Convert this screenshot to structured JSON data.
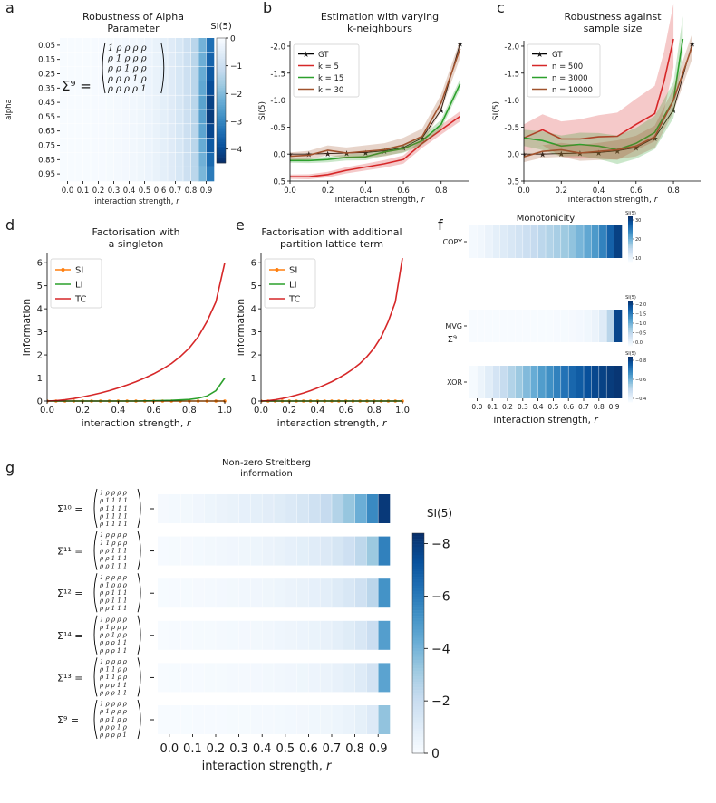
{
  "colors": {
    "gt": "#000000",
    "red": "#d62728",
    "green": "#2ca02c",
    "brown": "#a0522d",
    "si": "#ff7f0e",
    "li": "#2ca02c",
    "tc": "#d62728",
    "cmap_low": "#f7fbff",
    "cmap_high": "#08306b"
  },
  "chart_data": [
    {
      "id": "a",
      "panel_letter": "a",
      "type": "heatmap",
      "title": "Robustness of Alpha\nParameter",
      "xlabel": "interaction strength, r",
      "ylabel": "alpha",
      "x_ticks": [
        "0.0",
        "0.1",
        "0.2",
        "0.3",
        "0.4",
        "0.5",
        "0.6",
        "0.7",
        "0.8",
        "0.9"
      ],
      "y_ticks": [
        "0.05",
        "0.15",
        "0.25",
        "0.35",
        "0.45",
        "0.55",
        "0.65",
        "0.75",
        "0.85",
        "0.95"
      ],
      "colorbar": {
        "label": "SI(5)",
        "ticks": [
          "0",
          "−1",
          "−2",
          "−3",
          "−4"
        ],
        "min": -4.5,
        "max": 0
      },
      "annotation": {
        "lhs": "Σ⁹ =",
        "rows": [
          "1 ρ ρ ρ ρ",
          "ρ 1 ρ ρ ρ",
          "ρ ρ 1 ρ ρ",
          "ρ ρ ρ 1 ρ",
          "ρ ρ ρ ρ 1"
        ]
      },
      "cols": 20,
      "values_by_col": [
        0,
        0,
        0,
        0,
        -0.02,
        -0.03,
        -0.05,
        -0.07,
        -0.1,
        -0.13,
        -0.18,
        -0.24,
        -0.32,
        -0.42,
        -0.55,
        -0.72,
        -0.95,
        -1.3,
        -2.0,
        -3.0
      ],
      "row_extra_last_col": [
        0.4,
        0.6,
        0.8,
        1.0,
        1.2,
        1.3,
        1.1,
        0.8,
        0.5,
        0.2
      ]
    },
    {
      "id": "b",
      "panel_letter": "b",
      "type": "line",
      "title": "Estimation with varying\nk-neighbours",
      "xlabel": "interaction strength, r",
      "ylabel": "SI(5)",
      "xlim": [
        0,
        0.95
      ],
      "ylim": [
        0.5,
        -2.1
      ],
      "inverted_y": true,
      "x_ticks": [
        "0.0",
        "0.2",
        "0.4",
        "0.6",
        "0.8"
      ],
      "y_ticks": [
        "-2.0",
        "-1.5",
        "-1.0",
        "-0.5",
        "0.0",
        "0.5"
      ],
      "legend": "upper-left",
      "series": [
        {
          "name": "GT",
          "color_key": "gt",
          "marker": true,
          "x": [
            0,
            0.1,
            0.2,
            0.3,
            0.4,
            0.5,
            0.6,
            0.7,
            0.8,
            0.9
          ],
          "y": [
            0,
            0,
            -0.01,
            -0.02,
            -0.03,
            -0.06,
            -0.12,
            -0.3,
            -0.82,
            -2.05
          ]
        },
        {
          "name": "k = 5",
          "color_key": "red",
          "x": [
            0,
            0.1,
            0.2,
            0.3,
            0.4,
            0.5,
            0.6,
            0.7,
            0.8,
            0.9
          ],
          "y": [
            0.42,
            0.42,
            0.38,
            0.3,
            0.24,
            0.18,
            0.1,
            -0.2,
            -0.45,
            -0.7
          ],
          "band": 0.04
        },
        {
          "name": "k = 15",
          "color_key": "green",
          "x": [
            0,
            0.1,
            0.2,
            0.3,
            0.4,
            0.5,
            0.6,
            0.7,
            0.8,
            0.9
          ],
          "y": [
            0.12,
            0.12,
            0.1,
            0.06,
            0.05,
            -0.04,
            -0.1,
            -0.25,
            -0.55,
            -1.3
          ],
          "band": 0.04
        },
        {
          "name": "k = 30",
          "color_key": "brown",
          "x": [
            0,
            0.1,
            0.2,
            0.3,
            0.4,
            0.5,
            0.6,
            0.7,
            0.8,
            0.9
          ],
          "y": [
            0.04,
            0.02,
            -0.07,
            -0.02,
            -0.05,
            -0.08,
            -0.17,
            -0.33,
            -0.95,
            -1.95
          ],
          "band": 0.07
        }
      ]
    },
    {
      "id": "c",
      "panel_letter": "c",
      "type": "line",
      "title": "Robustness against\nsample size",
      "xlabel": "interaction strength, r",
      "ylabel": "SI(5)",
      "xlim": [
        0,
        0.95
      ],
      "ylim": [
        0.5,
        -2.1
      ],
      "inverted_y": true,
      "x_ticks": [
        "0.0",
        "0.2",
        "0.4",
        "0.6",
        "0.8"
      ],
      "y_ticks": [
        "-2.0",
        "-1.5",
        "-1.0",
        "-0.5",
        "0.0",
        "0.5"
      ],
      "legend": "upper-left",
      "series": [
        {
          "name": "GT",
          "color_key": "gt",
          "marker": true,
          "x": [
            0,
            0.1,
            0.2,
            0.3,
            0.4,
            0.5,
            0.6,
            0.7,
            0.8,
            0.9
          ],
          "y": [
            0,
            0,
            -0.01,
            -0.02,
            -0.03,
            -0.06,
            -0.12,
            -0.3,
            -0.82,
            -2.05
          ]
        },
        {
          "name": "n = 500",
          "color_key": "red",
          "x": [
            0,
            0.1,
            0.2,
            0.3,
            0.4,
            0.5,
            0.6,
            0.7,
            0.75,
            0.8
          ],
          "y": [
            -0.3,
            -0.45,
            -0.28,
            -0.28,
            -0.32,
            -0.33,
            -0.55,
            -0.75,
            -1.35,
            -2.2
          ],
          "band": 0.25
        },
        {
          "name": "n = 3000",
          "color_key": "green",
          "x": [
            0,
            0.1,
            0.2,
            0.3,
            0.4,
            0.5,
            0.6,
            0.7,
            0.8,
            0.85
          ],
          "y": [
            -0.3,
            -0.25,
            -0.15,
            -0.18,
            -0.15,
            -0.08,
            -0.2,
            -0.4,
            -1.0,
            -2.2
          ],
          "band": 0.15
        },
        {
          "name": "n = 10000",
          "color_key": "brown",
          "x": [
            0,
            0.1,
            0.2,
            0.3,
            0.4,
            0.5,
            0.6,
            0.7,
            0.8,
            0.9
          ],
          "y": [
            0.05,
            -0.05,
            -0.08,
            -0.02,
            -0.05,
            -0.08,
            -0.15,
            -0.32,
            -1.0,
            -2.0
          ],
          "band": 0.1
        }
      ]
    },
    {
      "id": "d",
      "panel_letter": "d",
      "type": "line",
      "title": "Factorisation with\na singleton",
      "xlabel": "interaction strength, r",
      "ylabel": "information",
      "xlim": [
        0,
        1.0
      ],
      "ylim": [
        0,
        6.4
      ],
      "x_ticks": [
        "0.0",
        "0.2",
        "0.4",
        "0.6",
        "0.8",
        "1.0"
      ],
      "y_ticks": [
        "0",
        "1",
        "2",
        "3",
        "4",
        "5",
        "6"
      ],
      "legend": "upper-left",
      "series": [
        {
          "name": "SI",
          "color_key": "si",
          "marker": true,
          "x": [
            0,
            0.05,
            0.1,
            0.15,
            0.2,
            0.25,
            0.3,
            0.35,
            0.4,
            0.45,
            0.5,
            0.55,
            0.6,
            0.65,
            0.7,
            0.75,
            0.8,
            0.85,
            0.9,
            0.95,
            1.0
          ],
          "y": [
            0,
            0,
            0,
            0,
            0,
            0,
            0,
            0,
            0,
            0,
            0,
            0,
            0,
            0,
            0,
            0,
            0,
            0,
            0,
            0,
            0
          ]
        },
        {
          "name": "LI",
          "color_key": "li",
          "x": [
            0,
            0.1,
            0.2,
            0.3,
            0.4,
            0.5,
            0.6,
            0.7,
            0.8,
            0.85,
            0.9,
            0.95,
            1.0
          ],
          "y": [
            0,
            0,
            0,
            0,
            0,
            0,
            0.01,
            0.03,
            0.07,
            0.12,
            0.22,
            0.45,
            1.0
          ]
        },
        {
          "name": "TC",
          "color_key": "tc",
          "x": [
            0,
            0.05,
            0.1,
            0.15,
            0.2,
            0.25,
            0.3,
            0.35,
            0.4,
            0.45,
            0.5,
            0.55,
            0.6,
            0.65,
            0.7,
            0.75,
            0.8,
            0.85,
            0.9,
            0.95,
            1.0
          ],
          "y": [
            0,
            0.02,
            0.06,
            0.11,
            0.18,
            0.26,
            0.35,
            0.45,
            0.57,
            0.7,
            0.84,
            1.0,
            1.18,
            1.39,
            1.63,
            1.93,
            2.3,
            2.78,
            3.45,
            4.3,
            6.0
          ]
        }
      ]
    },
    {
      "id": "e",
      "panel_letter": "e",
      "type": "line",
      "title": "Factorisation with additional\npartition lattice term",
      "xlabel": "interaction strength, r",
      "ylabel": "information",
      "xlim": [
        0,
        1.0
      ],
      "ylim": [
        0,
        6.4
      ],
      "x_ticks": [
        "0.0",
        "0.2",
        "0.4",
        "0.6",
        "0.8",
        "1.0"
      ],
      "y_ticks": [
        "0",
        "1",
        "2",
        "3",
        "4",
        "5",
        "6"
      ],
      "legend": "upper-left",
      "series": [
        {
          "name": "SI",
          "color_key": "si",
          "marker": true,
          "x": [
            0,
            0.05,
            0.1,
            0.15,
            0.2,
            0.25,
            0.3,
            0.35,
            0.4,
            0.45,
            0.5,
            0.55,
            0.6,
            0.65,
            0.7,
            0.75,
            0.8,
            0.85,
            0.9,
            0.95,
            1.0
          ],
          "y": [
            0,
            0,
            0,
            0,
            0,
            0,
            0,
            0,
            0,
            0,
            0,
            0,
            0,
            0,
            0,
            0,
            0,
            0,
            0,
            0,
            0
          ]
        },
        {
          "name": "LI",
          "color_key": "li",
          "x": [
            0,
            0.2,
            0.4,
            0.6,
            0.8,
            1.0
          ],
          "y": [
            0,
            0,
            0,
            0,
            0,
            0
          ]
        },
        {
          "name": "TC",
          "color_key": "tc",
          "x": [
            0,
            0.05,
            0.1,
            0.15,
            0.2,
            0.25,
            0.3,
            0.35,
            0.4,
            0.45,
            0.5,
            0.55,
            0.6,
            0.65,
            0.7,
            0.75,
            0.8,
            0.85,
            0.9,
            0.95,
            1.0
          ],
          "y": [
            0,
            0.02,
            0.06,
            0.11,
            0.18,
            0.26,
            0.35,
            0.45,
            0.57,
            0.7,
            0.84,
            1.0,
            1.18,
            1.39,
            1.63,
            1.93,
            2.3,
            2.78,
            3.45,
            4.3,
            6.2
          ]
        }
      ]
    },
    {
      "id": "f",
      "panel_letter": "f",
      "type": "heatmap",
      "title": "Monotonicity",
      "xlabel": "interaction strength, r",
      "x_ticks": [
        "0.0",
        "0.1",
        "0.2",
        "0.3",
        "0.4",
        "0.5",
        "0.6",
        "0.7",
        "0.8",
        "0.9"
      ],
      "rows": [
        {
          "label": "COPY",
          "sublabel": "",
          "values": [
            0.5,
            1,
            2,
            3,
            4,
            5,
            6,
            7,
            8,
            9,
            10,
            11,
            12,
            13,
            15,
            17,
            19,
            22,
            26,
            30
          ],
          "cb_label": "SI(5)",
          "cb_ticks": [
            "30",
            "20",
            "10"
          ],
          "cb_min": 0,
          "cb_max": 32
        },
        {
          "label": "MVG",
          "sublabel": "Σ⁹",
          "values": [
            0,
            0,
            0,
            0,
            0,
            0,
            0,
            0,
            0,
            0,
            0,
            0.01,
            0.02,
            0.03,
            0.05,
            0.08,
            0.15,
            0.3,
            0.7,
            2.2
          ],
          "cb_label": "SI(5)",
          "cb_ticks": [
            "−2.0",
            "−1.5",
            "−1.0",
            "−0.5",
            "0.0"
          ],
          "cb_min": 0,
          "cb_max": 2.4
        },
        {
          "label": "XOR",
          "sublabel": "",
          "values": [
            0.01,
            0.05,
            0.1,
            0.16,
            0.22,
            0.28,
            0.34,
            0.4,
            0.46,
            0.52,
            0.57,
            0.62,
            0.67,
            0.71,
            0.75,
            0.79,
            0.82,
            0.84,
            0.86,
            0.88
          ],
          "cb_label": "SI(5)",
          "cb_ticks": [
            "−0.8",
            "−0.6",
            "−0.4"
          ],
          "cb_min": 0,
          "cb_max": 0.9
        }
      ]
    },
    {
      "id": "g",
      "panel_letter": "g",
      "type": "heatmap",
      "title": "Non-zero Streitberg\ninformation",
      "xlabel": "interaction strength, r",
      "x_ticks": [
        "0.0",
        "0.1",
        "0.2",
        "0.3",
        "0.4",
        "0.5",
        "0.6",
        "0.7",
        "0.8",
        "0.9"
      ],
      "colorbar": {
        "label": "SI(5)",
        "ticks": [
          "−8",
          "−6",
          "−4",
          "−2",
          "0"
        ],
        "min": 0,
        "max": 8.4
      },
      "rows": [
        {
          "label": "Σ¹⁰ =",
          "matrix": [
            "1 ρ ρ ρ ρ",
            "ρ 1 1 1 1",
            "ρ 1 1 1 1",
            "ρ 1 1 1 1",
            "ρ 1 1 1 1"
          ],
          "values": [
            0.1,
            0.15,
            0.2,
            0.3,
            0.4,
            0.5,
            0.6,
            0.7,
            0.8,
            0.9,
            1.0,
            1.2,
            1.4,
            1.7,
            2.1,
            2.6,
            3.3,
            4.2,
            5.5,
            8.1
          ]
        },
        {
          "label": "Σ¹¹ =",
          "matrix": [
            "1 ρ ρ ρ ρ",
            "1 1 ρ ρ ρ",
            "ρ ρ 1 1 1",
            "ρ ρ 1 1 1",
            "ρ ρ 1 1 1"
          ],
          "values": [
            0.05,
            0.08,
            0.1,
            0.15,
            0.2,
            0.25,
            0.3,
            0.35,
            0.42,
            0.5,
            0.6,
            0.7,
            0.82,
            0.97,
            1.15,
            1.4,
            1.75,
            2.3,
            3.2,
            5.8
          ]
        },
        {
          "label": "Σ¹² =",
          "matrix": [
            "1 ρ ρ ρ ρ",
            "ρ 1 ρ ρ ρ",
            "ρ ρ 1 1 1",
            "ρ ρ 1 1 1",
            "ρ ρ 1 1 1"
          ],
          "values": [
            0.03,
            0.05,
            0.07,
            0.1,
            0.13,
            0.17,
            0.2,
            0.25,
            0.3,
            0.35,
            0.42,
            0.5,
            0.6,
            0.72,
            0.85,
            1.05,
            1.3,
            1.7,
            2.4,
            5.2
          ]
        },
        {
          "label": "Σ¹⁴ =",
          "matrix": [
            "1 ρ ρ ρ ρ",
            "ρ 1 ρ ρ ρ",
            "ρ ρ 1 ρ ρ",
            "ρ ρ ρ 1 1",
            "ρ ρ ρ 1 1"
          ],
          "values": [
            0.02,
            0.04,
            0.05,
            0.07,
            0.09,
            0.12,
            0.15,
            0.18,
            0.22,
            0.27,
            0.32,
            0.38,
            0.45,
            0.54,
            0.65,
            0.8,
            1.0,
            1.3,
            1.9,
            4.8
          ]
        },
        {
          "label": "Σ¹³ =",
          "matrix": [
            "1 ρ ρ ρ ρ",
            "ρ 1 1 ρ ρ",
            "ρ 1 1 ρ ρ",
            "ρ ρ ρ 1 1",
            "ρ ρ ρ 1 1"
          ],
          "values": [
            0.02,
            0.03,
            0.04,
            0.05,
            0.07,
            0.09,
            0.11,
            0.14,
            0.17,
            0.2,
            0.25,
            0.3,
            0.36,
            0.43,
            0.52,
            0.64,
            0.8,
            1.05,
            1.55,
            4.6
          ]
        },
        {
          "label": "Σ⁹ =",
          "matrix": [
            "1 ρ ρ ρ ρ",
            "ρ 1 ρ ρ ρ",
            "ρ ρ 1 ρ ρ",
            "ρ ρ ρ 1 ρ",
            "ρ ρ ρ ρ 1"
          ],
          "values": [
            0.01,
            0.02,
            0.03,
            0.04,
            0.05,
            0.06,
            0.07,
            0.09,
            0.11,
            0.13,
            0.16,
            0.19,
            0.23,
            0.28,
            0.34,
            0.42,
            0.54,
            0.74,
            1.1,
            3.4
          ]
        }
      ]
    }
  ]
}
